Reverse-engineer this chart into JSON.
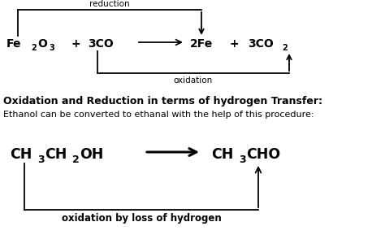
{
  "bg_color": "#ffffff",
  "reduction_label": "reduction",
  "oxidation_label1": "oxidation",
  "section2_title": "Oxidation and Reduction in terms of hydrogen Transfer:",
  "section2_subtitle": "Ethanol can be converted to ethanal with the help of this procedure:",
  "oxidation_label2": "oxidation by loss of hydrogen",
  "lw": 1.3,
  "fs_eq1": 10.0,
  "fs_eq2": 12.5,
  "fs_label": 7.5,
  "fs_title": 9.0,
  "fs_subtitle": 8.0,
  "fs_ox2": 8.5
}
